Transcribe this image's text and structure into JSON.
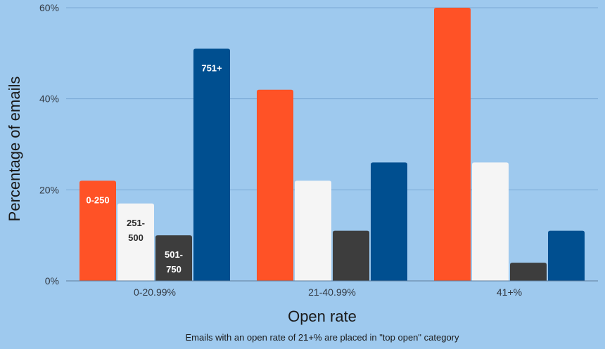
{
  "chart_data": {
    "type": "bar",
    "title": "",
    "xlabel": "Open rate",
    "ylabel": "Percentage of emails",
    "categories": [
      "0-20.99%",
      "21-40.99%",
      "41+%"
    ],
    "series": [
      {
        "name": "0-250",
        "values": [
          22,
          42,
          60
        ],
        "color": "#ff5226"
      },
      {
        "name": "251-500",
        "values": [
          17,
          22,
          26
        ],
        "color": "#f5f5f5"
      },
      {
        "name": "501-750",
        "values": [
          10,
          11,
          4
        ],
        "color": "#3d3d3d"
      },
      {
        "name": "751+",
        "values": [
          51,
          26,
          11
        ],
        "color": "#004f90"
      }
    ],
    "series_label_lines": [
      [
        "0-250"
      ],
      [
        "251-",
        "500"
      ],
      [
        "501-",
        "750"
      ],
      [
        "751+"
      ]
    ],
    "series_label_colors": [
      "#ffffff",
      "#2b2b2b",
      "#ffffff",
      "#ffffff"
    ],
    "yticks": [
      {
        "value": 0,
        "label": "0%"
      },
      {
        "value": 20,
        "label": "20%"
      },
      {
        "value": 40,
        "label": "40%"
      },
      {
        "value": 60,
        "label": "60%"
      }
    ],
    "ylim": [
      0,
      60
    ],
    "grid": true,
    "legend": "inline labels on first group",
    "footnote": "Emails with an open rate of 21+% are placed in \"top open\" category",
    "colors": {
      "background": "#9ec9ee",
      "grid": "#7aa8d4",
      "axis": "#5f7d9c"
    }
  }
}
